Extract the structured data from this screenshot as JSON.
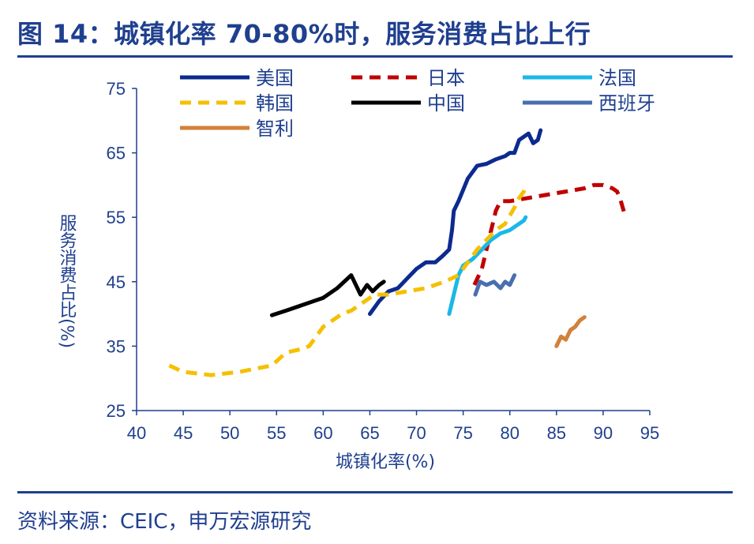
{
  "title": "图 14：城镇化率 70-80%时，服务消费占比上行",
  "source": "资料来源：CEIC，申万宏源研究",
  "chart_data": {
    "type": "line",
    "xlabel": "城镇化率(%)",
    "ylabel": "服务消费占比(%)",
    "xlim": [
      40,
      95
    ],
    "ylim": [
      25,
      75
    ],
    "xticks": [
      40,
      45,
      50,
      55,
      60,
      65,
      70,
      75,
      80,
      85,
      90,
      95
    ],
    "yticks": [
      25,
      35,
      45,
      55,
      65,
      75
    ],
    "grid": false,
    "legend_position": "top",
    "series": [
      {
        "name": "美国",
        "color": "#0c2a8f",
        "dash": "solid",
        "x": [
          65.0,
          66.0,
          67.0,
          68.0,
          69.0,
          70.0,
          71.0,
          72.0,
          72.8,
          73.5,
          73.8,
          74.0,
          74.5,
          75.5,
          76.5,
          77.5,
          78.5,
          79.5,
          80.0,
          80.5,
          81.0,
          81.5,
          82.0,
          82.5,
          83.0,
          83.3
        ],
        "y": [
          40.0,
          42.0,
          43.5,
          44.0,
          45.5,
          47.0,
          48.0,
          48.0,
          49.0,
          50.0,
          53.0,
          56.0,
          57.5,
          61.0,
          63.0,
          63.3,
          64.0,
          64.5,
          65.0,
          65.0,
          67.0,
          67.5,
          68.0,
          66.5,
          67.0,
          68.5
        ]
      },
      {
        "name": "日本",
        "color": "#c00000",
        "dash": "dashed",
        "x": [
          76.2,
          77.0,
          77.5,
          78.0,
          78.5,
          79.0,
          80.0,
          82.0,
          84.0,
          86.0,
          88.0,
          89.0,
          90.0,
          91.0,
          91.5,
          91.8,
          92.3
        ],
        "y": [
          44.5,
          47.0,
          50.0,
          53.0,
          56.0,
          57.5,
          57.5,
          58.0,
          58.5,
          59.0,
          59.5,
          60.0,
          60.0,
          59.5,
          59.0,
          58.0,
          55.5
        ]
      },
      {
        "name": "法国",
        "color": "#1ab8e8",
        "dash": "solid",
        "x": [
          73.5,
          74.0,
          74.5,
          75.0,
          76.0,
          77.0,
          78.0,
          79.0,
          80.0,
          80.5,
          81.0,
          81.5,
          81.7
        ],
        "y": [
          40.0,
          43.0,
          46.0,
          47.5,
          48.5,
          50.0,
          51.5,
          52.5,
          53.0,
          53.5,
          54.0,
          54.5,
          55.0
        ]
      },
      {
        "name": "韩国",
        "color": "#f5c000",
        "dash": "dashed",
        "x": [
          43.5,
          45.0,
          48.0,
          51.0,
          54.5,
          56.0,
          57.5,
          58.5,
          60.0,
          61.0,
          62.0,
          63.0,
          64.5,
          65.5,
          67.0,
          69.0,
          71.0,
          73.0,
          74.5,
          75.5,
          76.5,
          77.5,
          78.5,
          79.5,
          80.5,
          81.0,
          81.5,
          81.8
        ],
        "y": [
          32.0,
          31.0,
          30.5,
          31.0,
          32.0,
          34.0,
          34.5,
          35.0,
          38.0,
          39.0,
          40.0,
          40.5,
          42.0,
          43.0,
          43.0,
          43.5,
          44.0,
          45.0,
          46.0,
          48.0,
          50.0,
          51.5,
          53.0,
          54.0,
          56.5,
          58.0,
          59.0,
          60.0
        ]
      },
      {
        "name": "中国",
        "color": "#000000",
        "dash": "solid",
        "x": [
          54.5,
          56.0,
          58.0,
          60.0,
          61.5,
          63.0,
          64.0,
          64.7,
          65.3,
          66.0,
          66.5
        ],
        "y": [
          39.8,
          40.5,
          41.5,
          42.5,
          44.0,
          46.0,
          43.0,
          44.5,
          43.5,
          44.5,
          45.0
        ]
      },
      {
        "name": "西班牙",
        "color": "#4a6fb0",
        "dash": "solid",
        "x": [
          76.3,
          76.8,
          77.5,
          78.3,
          79.0,
          79.5,
          80.0,
          80.5
        ],
        "y": [
          43.0,
          45.0,
          44.5,
          45.0,
          44.0,
          45.0,
          44.5,
          46.0
        ]
      },
      {
        "name": "智利",
        "color": "#d2813a",
        "dash": "solid",
        "x": [
          85.0,
          85.5,
          86.0,
          86.5,
          87.0,
          87.5,
          88.0
        ],
        "y": [
          35.0,
          36.5,
          36.0,
          37.5,
          38.0,
          39.0,
          39.5
        ]
      }
    ]
  }
}
